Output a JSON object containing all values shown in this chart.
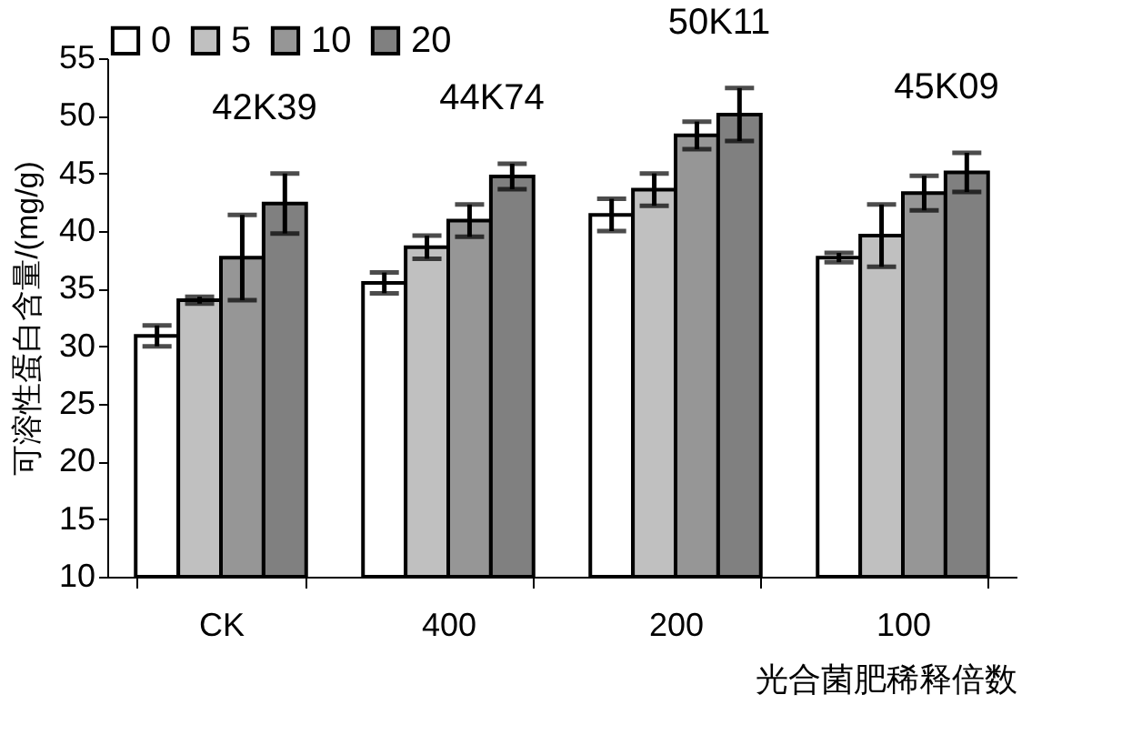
{
  "chart_data": {
    "type": "bar",
    "xlabel": "光合菌肥稀释倍数",
    "ylabel": "可溶性蛋白含量/(mg/g)",
    "categories": [
      "CK",
      "400",
      "200",
      "100"
    ],
    "series": [
      {
        "name": "0",
        "color": "#ffffff",
        "values": [
          30.9,
          35.5,
          41.4,
          37.7
        ],
        "errors": [
          0.9,
          0.9,
          1.4,
          0.4
        ]
      },
      {
        "name": "5",
        "color": "#c0c0c0",
        "values": [
          34.0,
          38.6,
          43.6,
          39.6
        ],
        "errors": [
          0.3,
          1.0,
          1.4,
          2.7
        ]
      },
      {
        "name": "10",
        "color": "#969696",
        "values": [
          37.7,
          40.9,
          48.3,
          43.3
        ],
        "errors": [
          3.7,
          1.4,
          1.2,
          1.5
        ]
      },
      {
        "name": "20",
        "color": "#808080",
        "values": [
          42.39,
          44.74,
          50.11,
          45.09
        ],
        "errors": [
          2.6,
          1.1,
          2.3,
          1.7
        ]
      }
    ],
    "annotations": [
      "42K39",
      "44K74",
      "50K11",
      "45K09"
    ],
    "ylim": [
      10,
      55
    ],
    "yticks": [
      10,
      15,
      20,
      25,
      30,
      35,
      40,
      45,
      50,
      55
    ],
    "grid": false,
    "legend": "top left"
  }
}
